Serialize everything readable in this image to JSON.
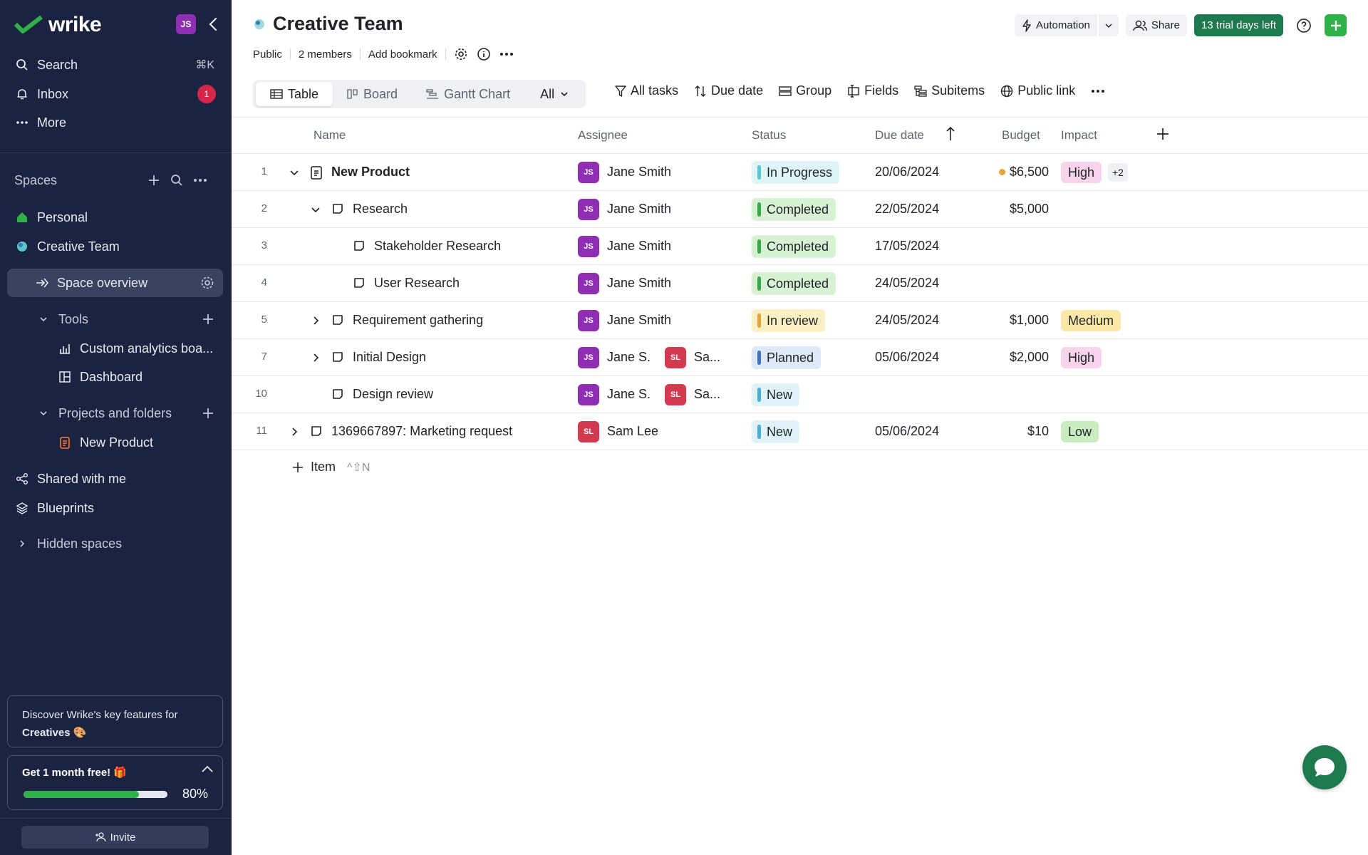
{
  "app": {
    "name": "wrike",
    "user_initials": "JS"
  },
  "sidebar": {
    "nav": [
      {
        "label": "Search",
        "shortcut": "⌘K"
      },
      {
        "label": "Inbox",
        "badge": "1"
      },
      {
        "label": "More"
      }
    ],
    "spaces_title": "Spaces",
    "spaces": [
      {
        "label": "Personal"
      },
      {
        "label": "Creative Team"
      }
    ],
    "space_overview": "Space overview",
    "tools_label": "Tools",
    "tools_items": [
      "Custom analytics boa...",
      "Dashboard"
    ],
    "projects_label": "Projects and folders",
    "projects_items": [
      "New Product"
    ],
    "shared": "Shared with me",
    "blueprints": "Blueprints",
    "hidden_spaces": "Hidden spaces",
    "promo1_line1": "Discover Wrike's key features for",
    "promo1_line2": "Creatives 🎨",
    "promo2_title": "Get 1 month free! 🎁",
    "promo2_progress": 0.8,
    "promo2_pct": "80%",
    "invite": "Invite"
  },
  "header": {
    "title": "Creative Team",
    "meta": [
      "Public",
      "2 members",
      "Add bookmark"
    ],
    "automation": "Automation",
    "share": "Share",
    "trial": "13 trial days left"
  },
  "toolbar": {
    "views": [
      "Table",
      "Board",
      "Gantt Chart"
    ],
    "active_view": "Table",
    "view_all": "All",
    "tools": [
      "All tasks",
      "Due date",
      "Group",
      "Fields",
      "Subitems",
      "Public link"
    ]
  },
  "table": {
    "columns": [
      "Name",
      "Assignee",
      "Status",
      "Due date",
      "Budget",
      "Impact"
    ],
    "rows": [
      {
        "num": "1",
        "name": "New Product",
        "assignees": [
          {
            "initials": "JS",
            "name": "Jane Smith"
          }
        ],
        "status": "In Progress",
        "due": "20/06/2024",
        "budget": "$6,500",
        "impact": "High",
        "extra": "+2"
      },
      {
        "num": "2",
        "name": "Research",
        "assignees": [
          {
            "initials": "JS",
            "name": "Jane Smith"
          }
        ],
        "status": "Completed",
        "due": "22/05/2024",
        "budget": "$5,000",
        "impact": ""
      },
      {
        "num": "3",
        "name": "Stakeholder Research",
        "assignees": [
          {
            "initials": "JS",
            "name": "Jane Smith"
          }
        ],
        "status": "Completed",
        "due": "17/05/2024",
        "budget": "",
        "impact": ""
      },
      {
        "num": "4",
        "name": "User Research",
        "assignees": [
          {
            "initials": "JS",
            "name": "Jane Smith"
          }
        ],
        "status": "Completed",
        "due": "24/05/2024",
        "budget": "",
        "impact": ""
      },
      {
        "num": "5",
        "name": "Requirement gathering",
        "assignees": [
          {
            "initials": "JS",
            "name": "Jane Smith"
          }
        ],
        "status": "In review",
        "due": "24/05/2024",
        "budget": "$1,000",
        "impact": "Medium"
      },
      {
        "num": "7",
        "name": "Initial Design",
        "assignees": [
          {
            "initials": "JS",
            "name": "Jane S."
          },
          {
            "initials": "SL",
            "name": "Sa..."
          }
        ],
        "status": "Planned",
        "due": "05/06/2024",
        "budget": "$2,000",
        "impact": "High"
      },
      {
        "num": "10",
        "name": "Design review",
        "assignees": [
          {
            "initials": "JS",
            "name": "Jane S."
          },
          {
            "initials": "SL",
            "name": "Sa..."
          }
        ],
        "status": "New",
        "due": "",
        "budget": "",
        "impact": ""
      },
      {
        "num": "11",
        "name": "1369667897: Marketing request",
        "assignees": [
          {
            "initials": "SL",
            "name": "Sam Lee"
          }
        ],
        "status": "New",
        "due": "05/06/2024",
        "budget": "$10",
        "impact": "Low"
      }
    ],
    "add_item": "Item",
    "add_item_hint": "^⇧N"
  },
  "colors": {
    "sidebar_bg": "#1b2340",
    "accent_green": "#2fb14a",
    "trial_green": "#1e7a4e",
    "status_in_progress": "#dff4f7",
    "status_completed": "#d7f2d3",
    "status_in_review": "#fbefc4",
    "status_planned": "#dfe8f7",
    "status_new": "#dff2f8",
    "impact_high": "#f7d4ec",
    "impact_medium": "#fbe7a6",
    "impact_low": "#c9ecc0"
  }
}
